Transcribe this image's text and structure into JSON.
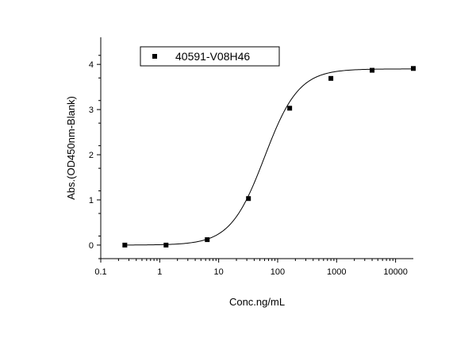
{
  "chart_data": {
    "type": "scatter",
    "title": "",
    "xlabel": "Conc.ng/mL",
    "ylabel": "Abs.(OD450nm-Blank)",
    "xscale": "log",
    "xlim": [
      0.1,
      20000
    ],
    "ylim": [
      -0.3,
      4.6
    ],
    "x_ticks": [
      0.1,
      1,
      10,
      100,
      1000,
      10000
    ],
    "x_tick_labels": [
      "0.1",
      "1",
      "10",
      "100",
      "1000",
      "10000"
    ],
    "y_ticks": [
      0,
      1,
      2,
      3,
      4
    ],
    "y_tick_labels": [
      "0",
      "1",
      "2",
      "3",
      "4"
    ],
    "grid": false,
    "legend_position": "top-left",
    "series": [
      {
        "name": "40591-V08H46",
        "marker": "square",
        "color": "#000000",
        "x": [
          0.256,
          1.28,
          6.4,
          32,
          160,
          800,
          4000,
          20000
        ],
        "y": [
          0.0,
          0.0,
          0.12,
          1.03,
          3.03,
          3.69,
          3.87,
          3.91
        ]
      }
    ],
    "fit_curve": {
      "model": "4PL",
      "bottom": 0.0,
      "top": 3.9,
      "ec50": 60,
      "hill": 1.5,
      "color": "#000000"
    }
  }
}
